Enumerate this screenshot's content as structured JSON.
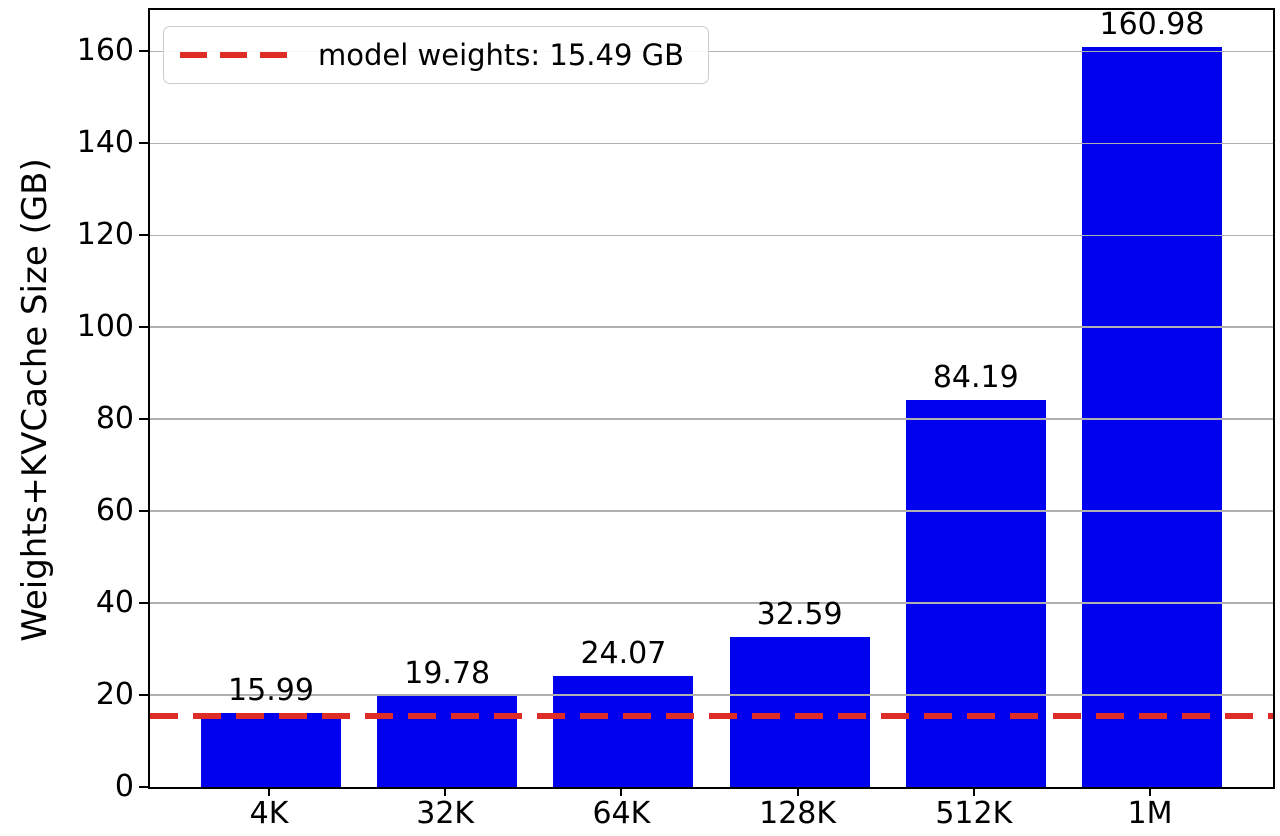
{
  "chart_data": {
    "type": "bar",
    "title": "",
    "categories": [
      "4K",
      "32K",
      "64K",
      "128K",
      "512K",
      "1M"
    ],
    "values": [
      15.99,
      19.78,
      24.07,
      32.59,
      84.19,
      160.98
    ],
    "bar_value_labels": [
      "15.99",
      "19.78",
      "24.07",
      "32.59",
      "84.19",
      "160.98"
    ],
    "xlabel": "",
    "ylabel": "Weights+KVCache Size (GB)",
    "yticks": [
      0,
      20,
      40,
      60,
      80,
      100,
      120,
      140,
      160
    ],
    "ylim": [
      0,
      169
    ],
    "grid": "horizontal gridlines at y ticks, drawn on top of bars",
    "legend_position": "upper left",
    "legend": {
      "label": "model weights: 15.49 GB"
    },
    "reference_line": {
      "value": 15.49,
      "style": "dashed",
      "orientation": "horizontal"
    },
    "colors": {
      "bar": "#0000ee",
      "reference_line": "#de2d26",
      "gridline": "#b0b0b0",
      "text": "#000000",
      "legend_border": "#cccccc"
    }
  }
}
